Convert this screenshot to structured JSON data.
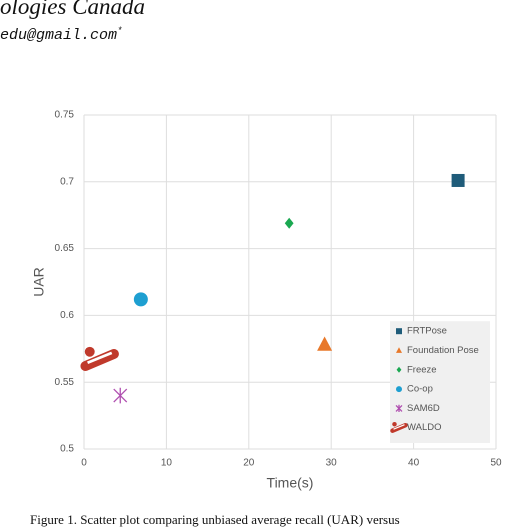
{
  "header": {
    "affiliation": "ologies Canada",
    "email": "edu@gmail.com",
    "email_mark": "*"
  },
  "chart_data": {
    "type": "scatter",
    "x_label": "Time(s)",
    "y_label": "UAR",
    "xlim": [
      0,
      50
    ],
    "xticks": [
      0,
      10,
      20,
      30,
      40,
      50
    ],
    "ylim": [
      0.5,
      0.75
    ],
    "yticks": [
      0.5,
      0.55,
      0.6,
      0.65,
      0.7,
      0.75
    ],
    "grid": true,
    "legend": "lower right",
    "series": [
      {
        "name": "FRTPose",
        "color": "#1f5c7a",
        "marker": "square",
        "x": [
          45.4
        ],
        "values": [
          0.701
        ]
      },
      {
        "name": "Foundation Pose",
        "color": "#e8782a",
        "marker": "triangle",
        "x": [
          29.2
        ],
        "values": [
          0.578
        ]
      },
      {
        "name": "Freeze",
        "color": "#1aa851",
        "marker": "diamond",
        "x": [
          24.9
        ],
        "values": [
          0.669
        ]
      },
      {
        "name": "Co-op",
        "color": "#1e9fd1",
        "marker": "circle",
        "x": [
          6.9
        ],
        "values": [
          0.612
        ]
      },
      {
        "name": "SAM6D",
        "color": "#b04fb0",
        "marker": "cross",
        "x": [
          4.4
        ],
        "values": [
          0.54
        ]
      },
      {
        "name": "WALDO",
        "color": "#c0392b",
        "marker": "icon",
        "x": [
          1.9
        ],
        "values": [
          0.567
        ]
      }
    ]
  },
  "caption": "Figure 1.  Scatter plot comparing unbiased average recall (UAR) versus"
}
